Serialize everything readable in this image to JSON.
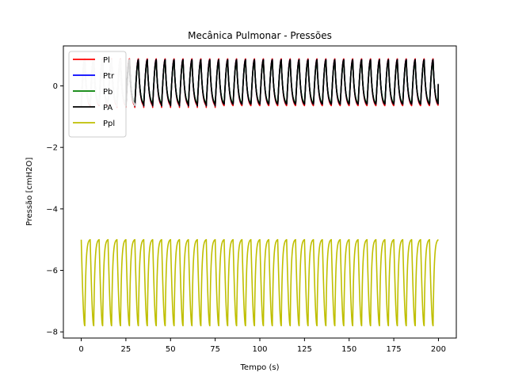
{
  "chart_data": {
    "type": "line",
    "title": "Mecânica Pulmonar - Pressões",
    "xlabel": "Tempo (s)",
    "ylabel": "Pressão [cmH2O]",
    "xlim": [
      -10,
      210
    ],
    "ylim": [
      -8.2,
      1.3
    ],
    "xticks": [
      0,
      25,
      50,
      75,
      100,
      125,
      150,
      175,
      200
    ],
    "yticks": [
      -8,
      -6,
      -4,
      -2,
      0
    ],
    "ytick_labels": [
      "−8",
      "−6",
      "−4",
      "−2",
      "0"
    ],
    "grid": false,
    "legend_position": "upper-left",
    "x_range": [
      0,
      200
    ],
    "cycle_period_s": 5,
    "series": [
      {
        "name": "Pl",
        "color": "#ff0000",
        "min": -0.7,
        "max": 0.88,
        "final": 0.05
      },
      {
        "name": "Ptr",
        "color": "#0000ff",
        "min": -0.65,
        "max": 0.85,
        "final": 0.05
      },
      {
        "name": "Pb",
        "color": "#008000",
        "min": -0.62,
        "max": 0.82,
        "final": 0.05
      },
      {
        "name": "PA",
        "color": "#000000",
        "min": -0.65,
        "max": 0.85,
        "final": 0.05
      },
      {
        "name": "Ppl",
        "color": "#bfbf00",
        "min": -7.8,
        "max": -5.0,
        "final": -5.0
      }
    ],
    "early_gray_segment_x": [
      0,
      30
    ]
  }
}
